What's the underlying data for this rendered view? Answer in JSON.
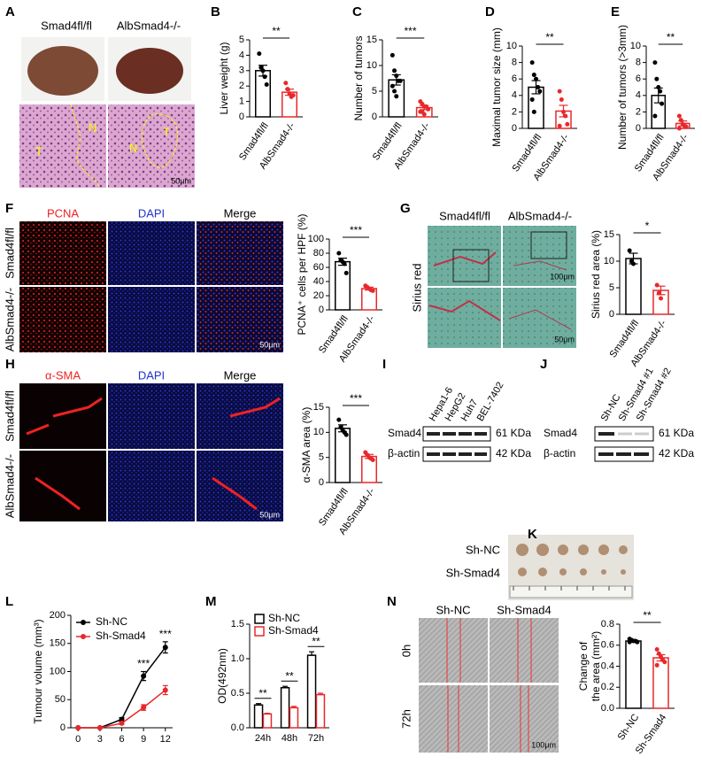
{
  "figure": {
    "panel_letters": [
      "A",
      "B",
      "C",
      "D",
      "E",
      "F",
      "G",
      "H",
      "I",
      "J",
      "K",
      "L",
      "M",
      "N"
    ],
    "A": {
      "columns": [
        "Smad4fl/fl",
        "AlbSmad4-/-"
      ],
      "regions": [
        "T",
        "N",
        "N",
        "T"
      ],
      "scale": "50μm"
    },
    "F": {
      "columns": [
        "PCNA",
        "DAPI",
        "Merge"
      ],
      "rows": [
        "Smad4fl/fl",
        "AlbSmad4-/-"
      ],
      "scale": "50μm"
    },
    "G": {
      "columns": [
        "Smad4fl/fl",
        "AlbSmad4-/-"
      ],
      "side": "Sirius red",
      "scales": [
        "100μm",
        "50μm"
      ]
    },
    "H": {
      "columns": [
        "α-SMA",
        "DAPI",
        "Merge"
      ],
      "rows": [
        "Smad4fl/fl",
        "AlbSmad4-/-"
      ],
      "scale": "50μm"
    },
    "I": {
      "lanes": [
        "Hepa1-6",
        "HepG2",
        "Huh7",
        "BEL-7402"
      ],
      "bands": [
        "Smad4",
        "β-actin"
      ],
      "sizes": [
        "61 KDa",
        "42 KDa"
      ]
    },
    "J": {
      "lanes": [
        "Sh-NC",
        "Sh-Smad4 #1",
        "Sh-Smad4 #2"
      ],
      "bands": [
        "Smad4",
        "β-actin"
      ],
      "sizes": [
        "61 KDa",
        "42 KDa"
      ]
    },
    "K": {
      "rows": [
        "Sh-NC",
        "Sh-Smad4"
      ]
    },
    "N": {
      "columns": [
        "Sh-NC",
        "Sh-Smad4"
      ],
      "rows": [
        "0h",
        "72h"
      ],
      "scale": "100μm"
    }
  },
  "chart_data": [
    {
      "type": "bar",
      "y_label": "Liver weight (g)",
      "categories": [
        "Smad4fl/fl",
        "AlbSmad4-/-"
      ],
      "values": [
        3.0,
        1.6
      ],
      "errors": [
        0.35,
        0.2
      ],
      "points": [
        [
          4.1,
          3.2,
          3.0,
          2.6,
          2.1
        ],
        [
          2.2,
          1.8,
          1.5,
          1.3,
          1.4
        ]
      ],
      "colors": [
        "#000000",
        "#e8282b"
      ],
      "ylim": [
        0,
        5
      ],
      "yticks": [
        0,
        1,
        2,
        3,
        4,
        5
      ],
      "significance": "**"
    },
    {
      "type": "bar",
      "y_label": "Number of tumors",
      "categories": [
        "Smad4fl/fl",
        "AlbSmad4-/-"
      ],
      "values": [
        7.2,
        1.8
      ],
      "errors": [
        1.0,
        0.4
      ],
      "points": [
        [
          12,
          9,
          8,
          7,
          7,
          6,
          5,
          4
        ],
        [
          3,
          2.5,
          2,
          2,
          1.5,
          1,
          1,
          0.5
        ]
      ],
      "colors": [
        "#000000",
        "#e8282b"
      ],
      "ylim": [
        0,
        15
      ],
      "yticks": [
        0,
        5,
        10,
        15
      ],
      "significance": "***"
    },
    {
      "type": "bar",
      "y_label": "Maximal tumor size  (mm)",
      "categories": [
        "Smad4fl/fl",
        "AlbSmad4-/-"
      ],
      "values": [
        5.0,
        2.1
      ],
      "errors": [
        0.8,
        0.7
      ],
      "points": [
        [
          8,
          6.5,
          6,
          5,
          4.5,
          3.5,
          2
        ],
        [
          4.5,
          3.5,
          2,
          1.5,
          0.5,
          0.3
        ]
      ],
      "colors": [
        "#000000",
        "#e8282b"
      ],
      "ylim": [
        0,
        10
      ],
      "yticks": [
        0,
        2,
        4,
        6,
        8,
        10
      ],
      "significance": "**"
    },
    {
      "type": "bar",
      "y_label": "Number of tumors (>3mm)",
      "categories": [
        "Smad4fl/fl",
        "AlbSmad4-/-"
      ],
      "values": [
        4.0,
        0.6
      ],
      "errors": [
        0.9,
        0.3
      ],
      "points": [
        [
          8,
          6,
          5,
          4.5,
          3,
          1.5
        ],
        [
          1.5,
          1,
          0.5,
          0.3,
          0.2,
          0
        ]
      ],
      "colors": [
        "#000000",
        "#e8282b"
      ],
      "ylim": [
        0,
        10
      ],
      "yticks": [
        0,
        2,
        4,
        6,
        8,
        10
      ],
      "significance": "**"
    },
    {
      "type": "bar",
      "y_label": "PCNA⁺ cells per HPF (%)",
      "categories": [
        "Smad4fl/fl",
        "AlbSmad4-/-"
      ],
      "values": [
        68,
        30
      ],
      "errors": [
        5,
        2
      ],
      "points": [
        [
          80,
          70,
          68,
          65,
          52
        ],
        [
          34,
          32,
          30,
          28,
          27
        ]
      ],
      "colors": [
        "#000000",
        "#e8282b"
      ],
      "ylim": [
        0,
        100
      ],
      "yticks": [
        0,
        20,
        40,
        60,
        80,
        100
      ],
      "significance": "***"
    },
    {
      "type": "bar",
      "y_label": "Sirius red area (%)",
      "categories": [
        "Smad4fl/fl",
        "AlbSmad4-/-"
      ],
      "values": [
        10.5,
        4.5
      ],
      "errors": [
        1.0,
        0.8
      ],
      "points": [
        [
          12,
          10,
          9.5
        ],
        [
          5.5,
          4,
          3
        ]
      ],
      "colors": [
        "#000000",
        "#e8282b"
      ],
      "ylim": [
        0,
        15
      ],
      "yticks": [
        0,
        5,
        10,
        15
      ],
      "significance": "*"
    },
    {
      "type": "bar",
      "y_label": "α-SMA area (%)",
      "categories": [
        "Smad4fl/fl",
        "AlbSmad4-/-"
      ],
      "values": [
        10.8,
        5.2
      ],
      "errors": [
        0.7,
        0.4
      ],
      "points": [
        [
          12.5,
          11,
          10.5,
          10,
          9.5
        ],
        [
          6,
          5.5,
          5,
          4.8,
          4.5
        ]
      ],
      "colors": [
        "#000000",
        "#e8282b"
      ],
      "ylim": [
        0,
        15
      ],
      "yticks": [
        0,
        5,
        10,
        15
      ],
      "significance": "***"
    },
    {
      "type": "line",
      "y_label": "Tumour volume (mm³)",
      "x": [
        0,
        3,
        6,
        9,
        12
      ],
      "xlim": [
        -1,
        13
      ],
      "xticks": [
        0,
        3,
        6,
        9,
        12
      ],
      "ylim": [
        0,
        200
      ],
      "yticks": [
        0,
        50,
        100,
        150,
        200
      ],
      "series": [
        {
          "name": "Sh-NC",
          "color": "#000000",
          "values": [
            0,
            0,
            15,
            92,
            143
          ],
          "errors": [
            0,
            0,
            3,
            8,
            10
          ]
        },
        {
          "name": "Sh-Smad4",
          "color": "#e8282b",
          "values": [
            0,
            0,
            8,
            36,
            67
          ],
          "errors": [
            0,
            0,
            2,
            5,
            8
          ]
        }
      ],
      "significance": [
        null,
        null,
        null,
        "***",
        "***"
      ],
      "legend": "upper left"
    },
    {
      "type": "bar",
      "y_label": "OD(492nm)",
      "categories": [
        "24h",
        "48h",
        "72h"
      ],
      "ylim": [
        0,
        1.5
      ],
      "yticks": [
        {
          "value": 0,
          "label": "0.0"
        },
        0.5,
        {
          "value": 1,
          "label": "1.0"
        },
        1.5
      ],
      "series": [
        {
          "name": "Sh-NC",
          "color": "#000000",
          "values": [
            0.33,
            0.58,
            1.05
          ],
          "errors": [
            0.02,
            0.02,
            0.05
          ]
        },
        {
          "name": "Sh-Smad4",
          "color": "#e8282b",
          "values": [
            0.2,
            0.29,
            0.48
          ],
          "errors": [
            0.01,
            0.02,
            0.02
          ]
        }
      ],
      "significance": [
        "**",
        "**",
        "**"
      ],
      "legend": "upper left"
    },
    {
      "type": "bar",
      "y_label": [
        "Change of",
        "the area (mm²)"
      ],
      "categories": [
        "Sh-NC",
        "Sh-Smad4"
      ],
      "values": [
        0.64,
        0.48
      ],
      "errors": [
        0.01,
        0.03
      ],
      "points": [
        [
          0.66,
          0.65,
          0.64,
          0.64,
          0.63,
          0.63
        ],
        [
          0.56,
          0.52,
          0.49,
          0.46,
          0.44,
          0.41
        ]
      ],
      "colors": [
        "#000000",
        "#e8282b"
      ],
      "ylim": [
        0,
        0.8
      ],
      "yticks": [
        {
          "value": 0,
          "label": "0.0"
        },
        0.2,
        0.4,
        0.6,
        0.8
      ],
      "significance": "**"
    }
  ]
}
